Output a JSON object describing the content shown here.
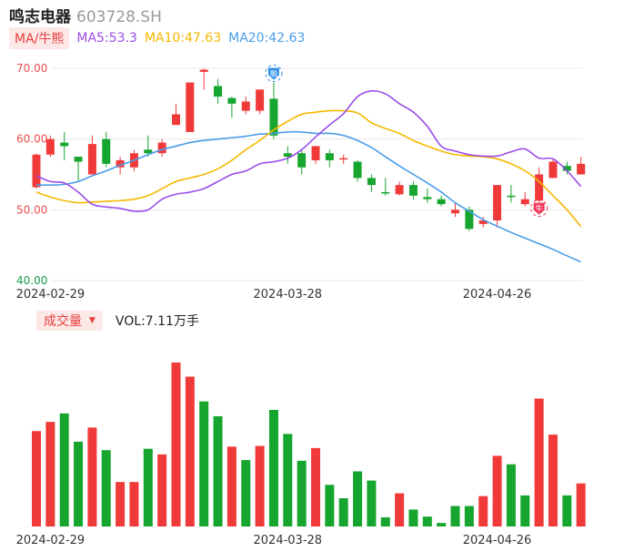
{
  "header": {
    "name": "鸣志电器",
    "code": "603728.SH"
  },
  "ma_legend": {
    "toggle": "MA/牛熊",
    "items": [
      {
        "label": "MA5:53.3",
        "color": "#9b4de8"
      },
      {
        "label": "MA10:47.63",
        "color": "#f5b800"
      },
      {
        "label": "MA20:42.63",
        "color": "#4a9de8"
      }
    ]
  },
  "volume_legend": {
    "toggle": "成交量",
    "value": "VOL:7.11万手"
  },
  "colors": {
    "up": "#f03a3a",
    "down": "#16a52e",
    "grid": "#e8e8e8"
  },
  "chart_data": [
    {
      "type": "candlestick",
      "y_ticks": [
        "70.00",
        "60.00",
        "50.00",
        "40.00"
      ],
      "ylim": [
        40,
        70
      ],
      "x_ticks": [
        {
          "index": 1,
          "label": "2024-02-29"
        },
        {
          "index": 18,
          "label": "2024-03-28"
        },
        {
          "index": 33,
          "label": "2024-04-26"
        }
      ],
      "markers": [
        {
          "index": 17,
          "type": "buy",
          "label": "融"
        },
        {
          "index": 36,
          "type": "sell",
          "label": "牛"
        }
      ],
      "candles": [
        {
          "o": 53.2,
          "c": 57.8,
          "h": 58.0,
          "l": 53.0
        },
        {
          "o": 57.8,
          "c": 60.0,
          "h": 60.5,
          "l": 57.5
        },
        {
          "o": 59.5,
          "c": 59.0,
          "h": 61.0,
          "l": 57.0
        },
        {
          "o": 57.5,
          "c": 56.8,
          "h": 57.5,
          "l": 54.0
        },
        {
          "o": 55.0,
          "c": 59.3,
          "h": 60.5,
          "l": 55.0
        },
        {
          "o": 60.0,
          "c": 56.5,
          "h": 61.0,
          "l": 56.0
        },
        {
          "o": 56.0,
          "c": 57.0,
          "h": 57.5,
          "l": 55.0
        },
        {
          "o": 56.0,
          "c": 58.0,
          "h": 58.5,
          "l": 55.5
        },
        {
          "o": 58.5,
          "c": 58.0,
          "h": 60.5,
          "l": 57.5
        },
        {
          "o": 58.0,
          "c": 59.5,
          "h": 60.0,
          "l": 57.5
        },
        {
          "o": 62.0,
          "c": 63.5,
          "h": 65.0,
          "l": 62.0
        },
        {
          "o": 61.0,
          "c": 68.0,
          "h": 68.0,
          "l": 61.0
        },
        {
          "o": 69.5,
          "c": 69.8,
          "h": 70.0,
          "l": 67.0
        },
        {
          "o": 67.5,
          "c": 66.0,
          "h": 68.5,
          "l": 65.0
        },
        {
          "o": 65.8,
          "c": 65.0,
          "h": 66.0,
          "l": 63.0
        },
        {
          "o": 64.0,
          "c": 65.3,
          "h": 66.0,
          "l": 63.5
        },
        {
          "o": 64.0,
          "c": 67.0,
          "h": 67.0,
          "l": 63.5
        },
        {
          "o": 65.7,
          "c": 60.5,
          "h": 68.0,
          "l": 60.0
        },
        {
          "o": 58.0,
          "c": 57.5,
          "h": 59.0,
          "l": 56.5
        },
        {
          "o": 58.0,
          "c": 56.0,
          "h": 58.5,
          "l": 55.0
        },
        {
          "o": 57.0,
          "c": 59.0,
          "h": 59.0,
          "l": 56.5
        },
        {
          "o": 58.0,
          "c": 57.0,
          "h": 58.5,
          "l": 56.0
        },
        {
          "o": 57.2,
          "c": 57.3,
          "h": 57.8,
          "l": 56.5
        },
        {
          "o": 56.8,
          "c": 54.5,
          "h": 57.0,
          "l": 54.0
        },
        {
          "o": 54.5,
          "c": 53.5,
          "h": 55.0,
          "l": 52.5
        },
        {
          "o": 52.5,
          "c": 52.3,
          "h": 54.5,
          "l": 52.0
        },
        {
          "o": 52.2,
          "c": 53.5,
          "h": 54.0,
          "l": 52.0
        },
        {
          "o": 53.5,
          "c": 52.0,
          "h": 54.0,
          "l": 51.5
        },
        {
          "o": 51.8,
          "c": 51.5,
          "h": 53.0,
          "l": 51.0
        },
        {
          "o": 51.5,
          "c": 50.8,
          "h": 52.0,
          "l": 50.5
        },
        {
          "o": 49.5,
          "c": 50.0,
          "h": 51.0,
          "l": 49.0
        },
        {
          "o": 50.0,
          "c": 47.3,
          "h": 50.5,
          "l": 47.0
        },
        {
          "o": 48.0,
          "c": 48.5,
          "h": 49.0,
          "l": 47.5
        },
        {
          "o": 48.5,
          "c": 53.5,
          "h": 53.5,
          "l": 47.5
        },
        {
          "o": 52.0,
          "c": 51.8,
          "h": 53.5,
          "l": 51.0
        },
        {
          "o": 50.8,
          "c": 51.5,
          "h": 52.5,
          "l": 50.5
        },
        {
          "o": 51.3,
          "c": 55.0,
          "h": 56.0,
          "l": 51.0
        },
        {
          "o": 54.5,
          "c": 56.8,
          "h": 57.2,
          "l": 54.5
        },
        {
          "o": 56.2,
          "c": 55.5,
          "h": 56.8,
          "l": 55.0
        },
        {
          "o": 55.0,
          "c": 56.5,
          "h": 57.5,
          "l": 55.0
        }
      ],
      "ma5": [
        54.8,
        54.0,
        53.8,
        52.5,
        50.8,
        50.4,
        50.2,
        49.8,
        50.0,
        51.5,
        52.2,
        52.5,
        53.0,
        54.0,
        55.0,
        55.5,
        56.5,
        56.8,
        57.3,
        58.5,
        60.3,
        62.0,
        63.6,
        66.0,
        66.8,
        66.4,
        65.0,
        63.8,
        61.8,
        59.0,
        58.3,
        57.8,
        57.6,
        57.6,
        58.2,
        58.6,
        57.3,
        57.2,
        55.5,
        53.3
      ],
      "ma10": [
        52.5,
        51.8,
        51.3,
        51.0,
        51.1,
        51.2,
        51.3,
        51.5,
        52.0,
        53.0,
        54.0,
        54.5,
        55.0,
        55.8,
        57.0,
        58.5,
        59.8,
        61.3,
        62.5,
        63.5,
        63.8,
        64.0,
        64.0,
        63.7,
        62.3,
        61.5,
        60.8,
        59.8,
        59.0,
        58.3,
        57.8,
        57.6,
        57.5,
        57.2,
        56.5,
        55.5,
        54.0,
        52.0,
        50.0,
        47.63
      ],
      "ma20": [
        53.5,
        53.5,
        53.6,
        54.0,
        54.8,
        55.5,
        56.3,
        57.0,
        57.8,
        58.5,
        59.0,
        59.5,
        59.8,
        60.0,
        60.2,
        60.4,
        60.7,
        60.8,
        61.0,
        61.0,
        60.8,
        60.8,
        60.5,
        59.8,
        58.8,
        57.5,
        56.2,
        55.0,
        53.8,
        52.5,
        51.0,
        49.8,
        48.6,
        47.7,
        46.8,
        46.0,
        45.2,
        44.4,
        43.5,
        42.63
      ]
    },
    {
      "type": "bar",
      "title": "成交量",
      "x_ticks": [
        {
          "index": 1,
          "label": "2024-02-29"
        },
        {
          "index": 18,
          "label": "2024-03-28"
        },
        {
          "index": 33,
          "label": "2024-04-26"
        }
      ],
      "values": [
        13.5,
        14.8,
        16.0,
        12.0,
        14.0,
        10.8,
        6.3,
        6.3,
        11.0,
        10.2,
        23.2,
        21.2,
        17.7,
        15.6,
        11.3,
        9.4,
        11.4,
        16.5,
        13.1,
        9.3,
        11.1,
        5.9,
        4.0,
        7.8,
        6.5,
        1.3,
        4.7,
        2.4,
        1.4,
        0.5,
        2.9,
        2.9,
        4.3,
        10.0,
        8.8,
        4.4,
        18.1,
        13.0,
        4.4,
        6.1
      ],
      "directions": [
        "up",
        "up",
        "down",
        "down",
        "up",
        "down",
        "up",
        "up",
        "down",
        "up",
        "up",
        "up",
        "down",
        "down",
        "up",
        "down",
        "up",
        "down",
        "down",
        "down",
        "up",
        "down",
        "down",
        "down",
        "down",
        "down",
        "up",
        "down",
        "down",
        "down",
        "down",
        "down",
        "up",
        "up",
        "down",
        "down",
        "up",
        "up",
        "down",
        "up"
      ]
    }
  ]
}
